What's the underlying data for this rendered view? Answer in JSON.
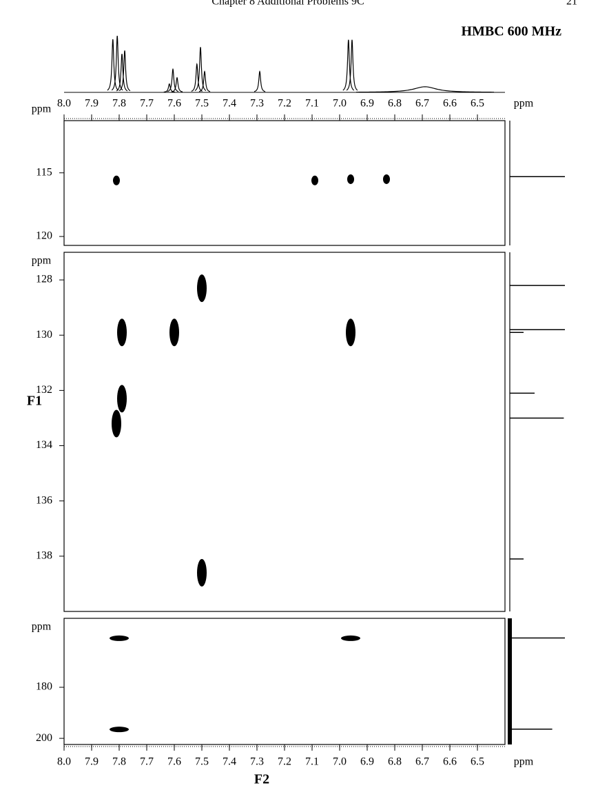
{
  "header": {
    "running_title": "Chapter 8   Additional Problems  9C",
    "page": "21"
  },
  "chart_data": {
    "type": "hmbc",
    "title": "HMBC 600 MHz",
    "x_label": "F2",
    "y_label": "F1",
    "unit": "ppm",
    "xlim": [
      8.0,
      6.4
    ],
    "xticks": [
      {
        "value": 8.0,
        "label": "8.0"
      },
      7.9,
      7.8,
      7.7,
      7.6,
      7.5,
      7.4,
      7.3,
      7.2,
      7.1,
      {
        "value": 7.0,
        "label": "7.0"
      },
      6.9,
      6.8,
      6.7,
      6.6,
      6.5
    ],
    "panels": [
      {
        "ylim": [
          110.9,
          120.7
        ],
        "yticks": [
          115,
          120
        ],
        "peaks": {
          "x": [
            7.81,
            7.09,
            6.96,
            6.83
          ],
          "y": [
            115.6,
            115.6,
            115.5,
            115.5
          ]
        },
        "f1_projection": {
          "ppm": [
            115.3
          ],
          "heights": [
            1.0
          ]
        }
      },
      {
        "ylim": [
          127.0,
          140.0
        ],
        "yticks": [
          128,
          130,
          132,
          134,
          136,
          138
        ],
        "peaks": {
          "x": [
            7.5,
            7.79,
            7.6,
            6.96,
            7.79,
            7.81,
            7.5
          ],
          "y": [
            128.3,
            129.9,
            129.9,
            129.9,
            132.3,
            133.2,
            138.6
          ]
        },
        "f1_projection": {
          "ppm": [
            128.2,
            129.8,
            129.9,
            132.1,
            133.0,
            138.1
          ],
          "heights": [
            1.0,
            1.0,
            0.25,
            0.45,
            0.98,
            0.25
          ]
        }
      },
      {
        "ylim": [
          153.0,
          202.4
        ],
        "yticks": [
          180,
          200
        ],
        "peaks": {
          "x": [
            7.8,
            6.96,
            7.8
          ],
          "y": [
            160.8,
            160.8,
            196.5
          ]
        },
        "f1_projection": {
          "ppm": [
            160.7,
            196.4
          ],
          "heights": [
            1.0,
            0.77
          ]
        }
      }
    ],
    "f2_projection": {
      "ppm": [
        7.823,
        7.807,
        7.79,
        7.78,
        7.618,
        7.605,
        7.59,
        7.518,
        7.505,
        7.49,
        7.29,
        6.968,
        6.955,
        6.69
      ],
      "heights": [
        0.94,
        1.0,
        0.68,
        0.74,
        0.15,
        0.41,
        0.26,
        0.5,
        0.8,
        0.37,
        0.37,
        0.93,
        0.93,
        0.1
      ],
      "linewidths": [
        0.004,
        0.004,
        0.004,
        0.004,
        0.004,
        0.004,
        0.004,
        0.004,
        0.004,
        0.004,
        0.004,
        0.004,
        0.004,
        0.05
      ]
    }
  }
}
